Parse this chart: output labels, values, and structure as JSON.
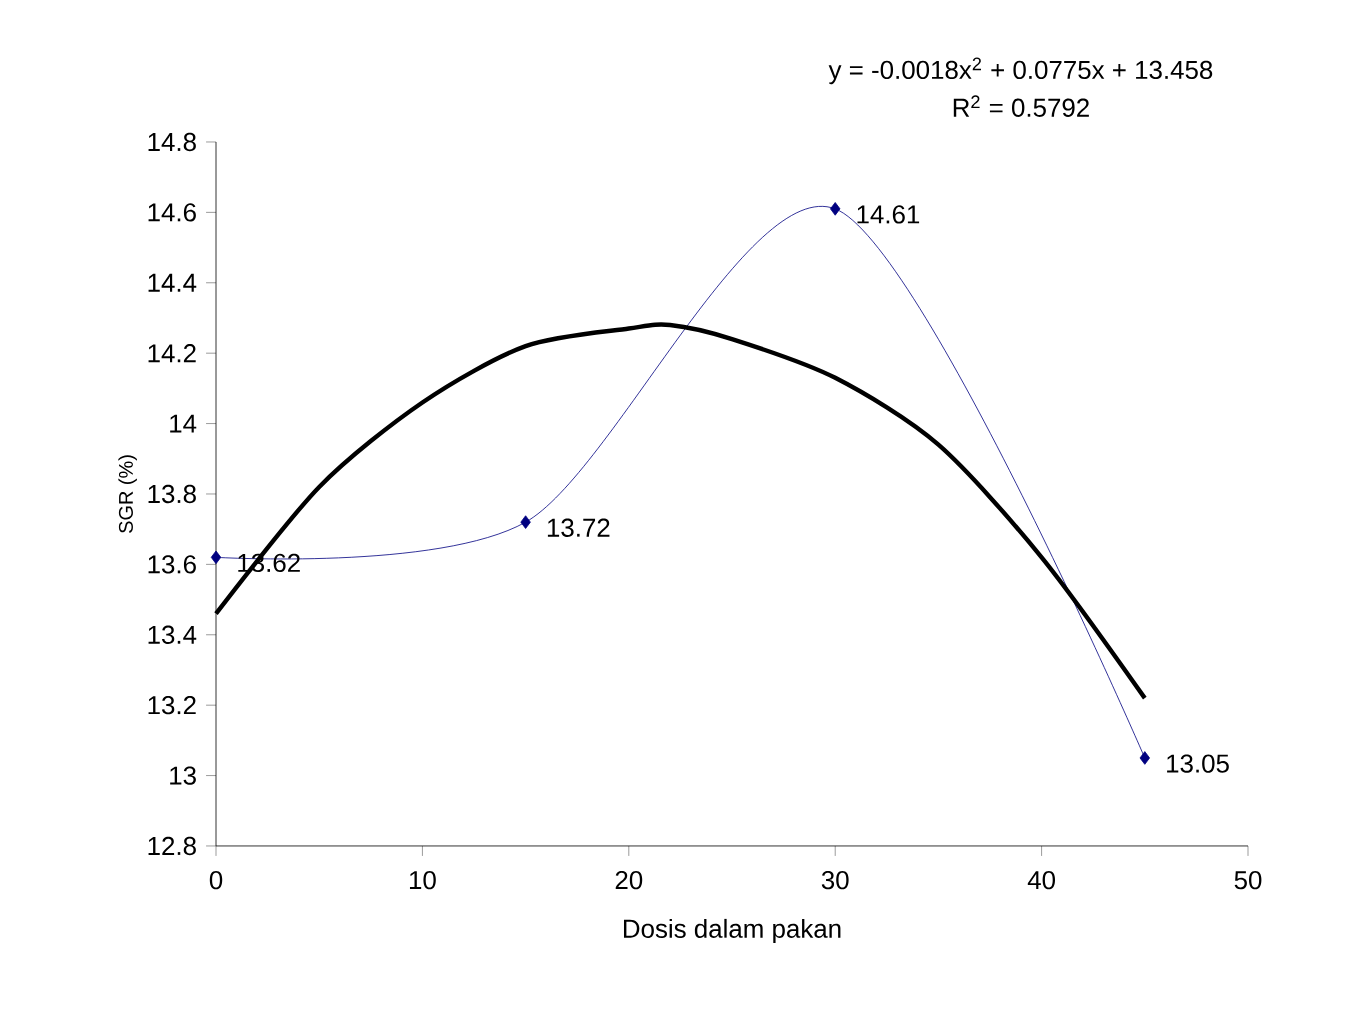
{
  "chart_data": {
    "type": "line",
    "xlabel": "Dosis dalam pakan",
    "ylabel": "SGR (%)",
    "annotations": [
      "y = -0.0018x$^{2}$ + 0.0775x + 13.458",
      "R$^{2}$ = 0.5792"
    ],
    "xlim": [
      0,
      50
    ],
    "xticks": [
      0,
      10,
      20,
      30,
      40,
      50
    ],
    "ylim": [
      12.8,
      14.8
    ],
    "yticks": [
      12.8,
      13,
      13.2,
      13.4,
      13.6,
      13.8,
      14,
      14.2,
      14.4,
      14.6,
      14.8
    ],
    "grid": false,
    "legend": false,
    "series": [
      {
        "color": "#000080",
        "marker": "diamond",
        "x": [
          0,
          15,
          30,
          45
        ],
        "values": [
          13.62,
          13.72,
          14.61,
          13.05
        ],
        "value_labels": [
          "13.62",
          "13.72",
          "14.61",
          "13.05"
        ]
      },
      {
        "color": "#000000",
        "marker": "none",
        "x": [
          0,
          5,
          10,
          15,
          20,
          22,
          25,
          30,
          35,
          40,
          45
        ],
        "values": [
          13.46,
          13.82,
          14.06,
          14.22,
          14.27,
          14.28,
          14.24,
          14.13,
          13.94,
          13.62,
          13.22
        ]
      }
    ]
  }
}
